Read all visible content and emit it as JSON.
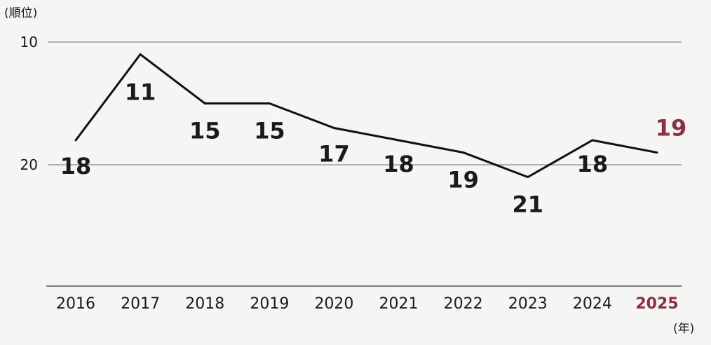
{
  "chart_data": {
    "type": "line",
    "ylabel": "(順位)",
    "xlabel": "(年)",
    "x": [
      "2016",
      "2017",
      "2018",
      "2019",
      "2020",
      "2021",
      "2022",
      "2023",
      "2024",
      "2025"
    ],
    "values": [
      18,
      11,
      15,
      15,
      17,
      18,
      19,
      21,
      18,
      19
    ],
    "yticks": [
      10,
      20
    ],
    "ylim": [
      10,
      30
    ],
    "y_inverted": true,
    "highlight_index": 9,
    "grid": true
  },
  "colors": {
    "line": "#111111",
    "text": "#1a1a1a",
    "highlight": "#8b2f45",
    "grid": "#8a8a8a",
    "background": "#f5f5f3"
  }
}
